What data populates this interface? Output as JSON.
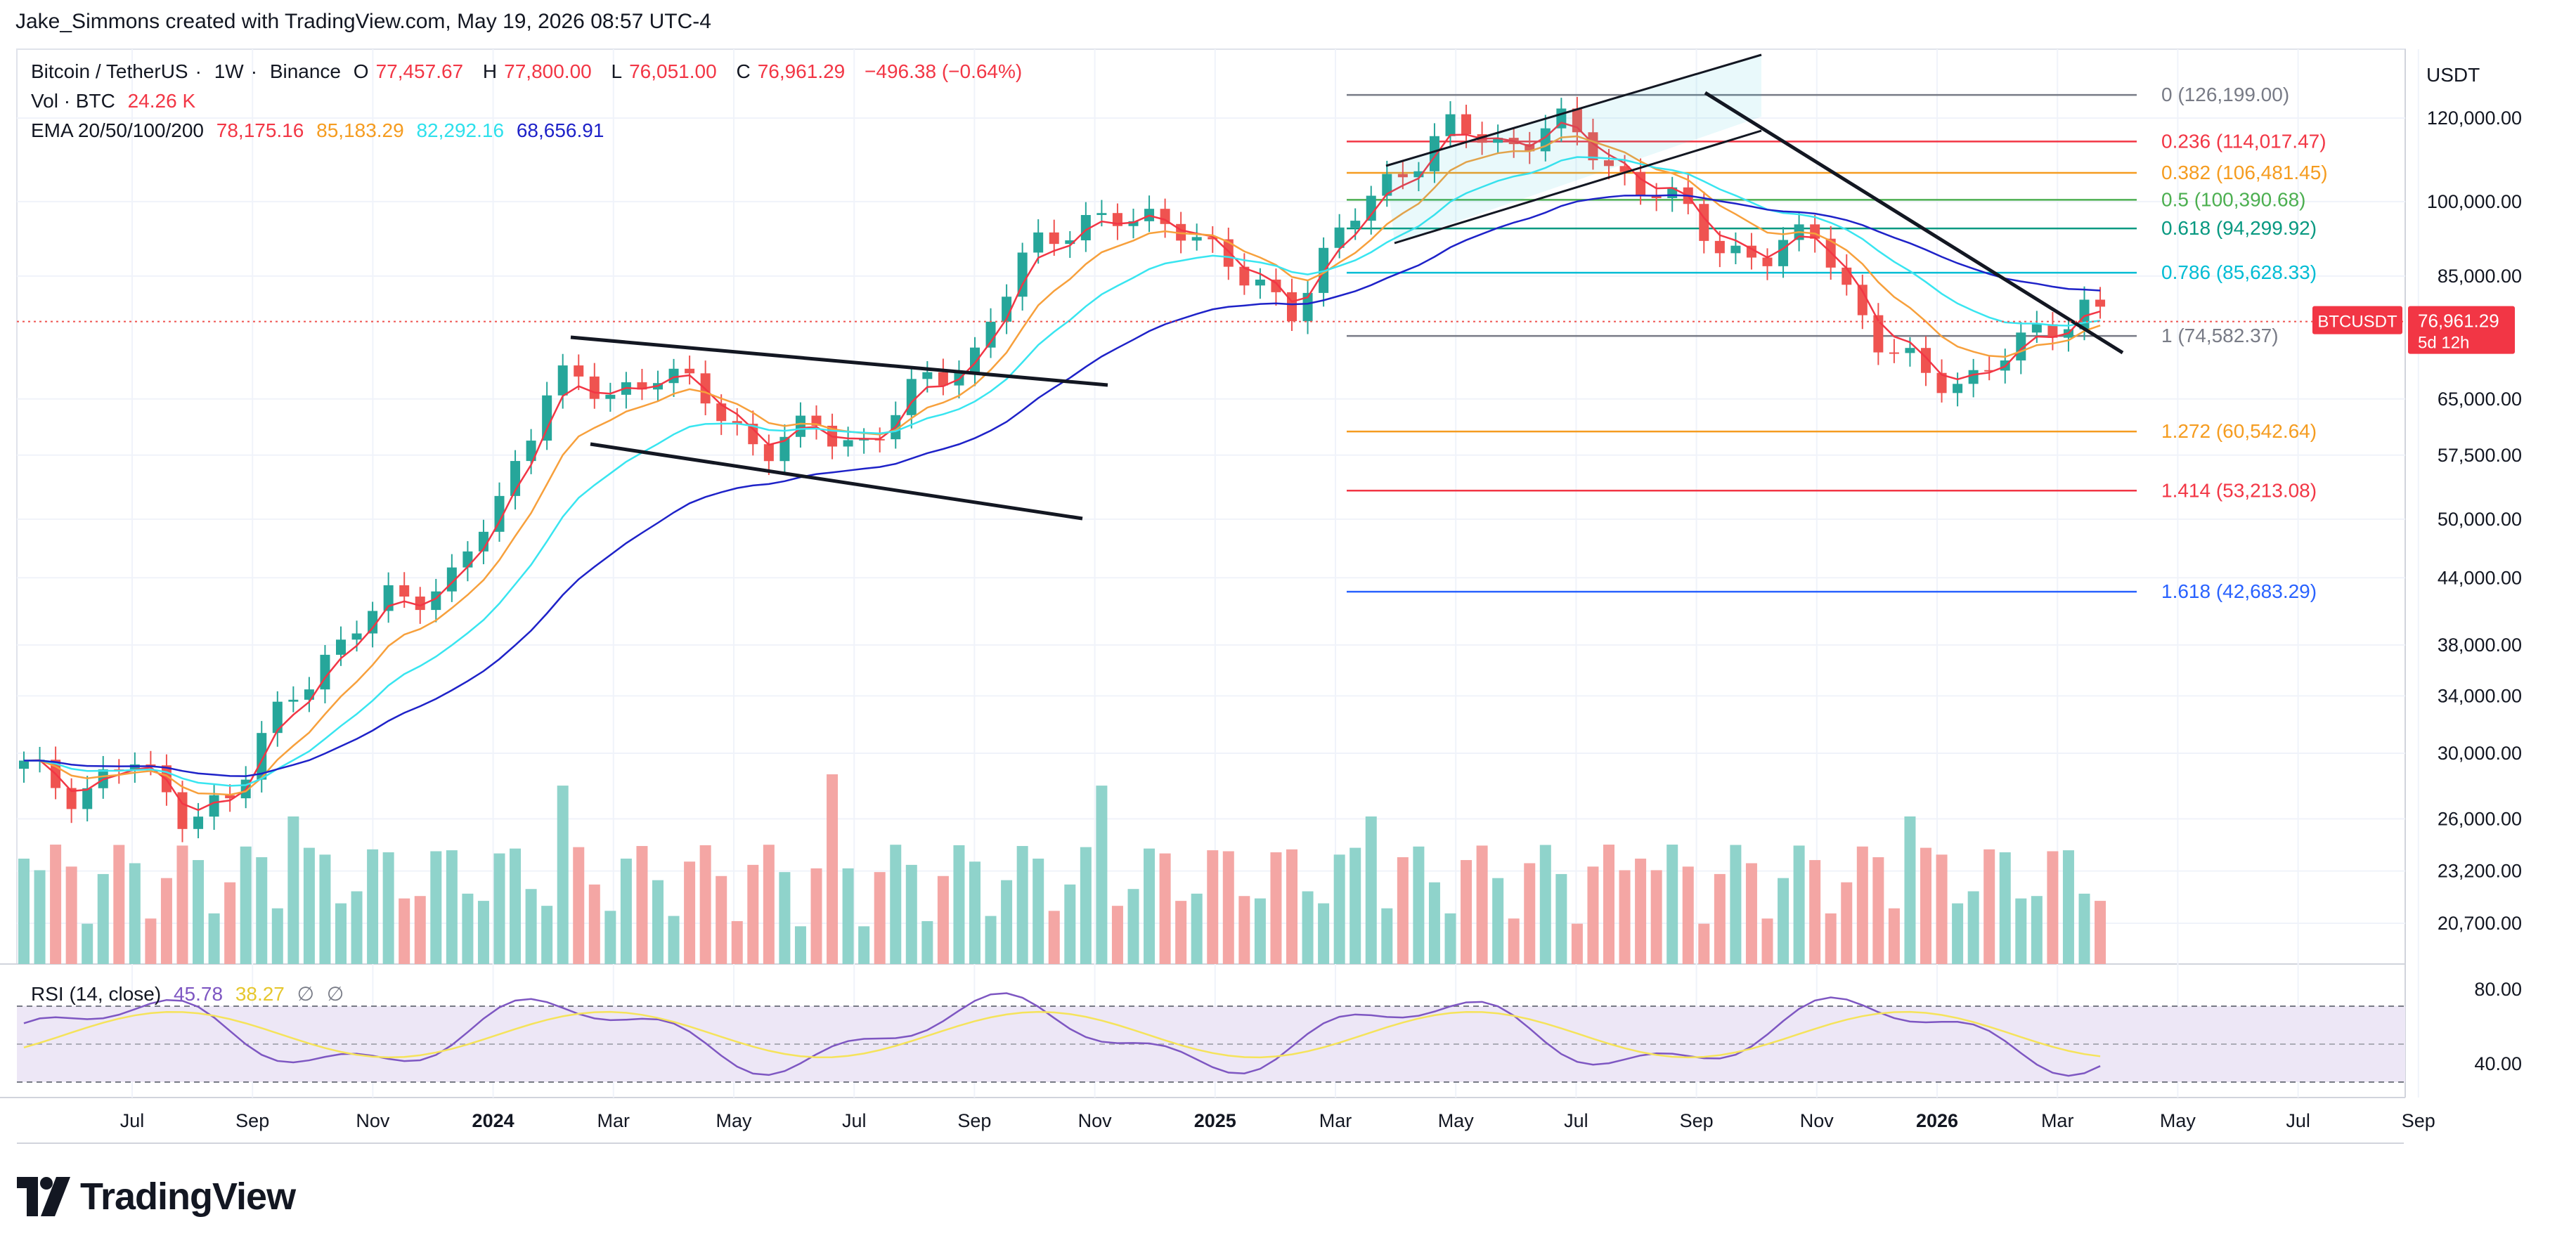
{
  "header": {
    "attribution": "Jake_Simmons created with TradingView.com, May 19, 2026 08:57 UTC-4"
  },
  "symbol": {
    "name": "Bitcoin / TetherUS",
    "interval": "1W",
    "exchange": "Binance",
    "o_label": "O",
    "open": "77,457.67",
    "h_label": "H",
    "high": "77,800.00",
    "l_label": "L",
    "low": "76,051.00",
    "c_label": "C",
    "close": "76,961.29",
    "change": "−496.38 (−0.64%)"
  },
  "volume": {
    "label": "Vol · BTC",
    "value": "24.26 K"
  },
  "ema": {
    "label": "EMA 20/50/100/200",
    "values": [
      "78,175.16",
      "85,183.29",
      "82,292.16",
      "68,656.91"
    ],
    "colors": [
      "#f23645",
      "#f7a03c",
      "#39e5f0",
      "#1e22c8"
    ]
  },
  "rsi": {
    "label": "RSI (14, close)",
    "value": "45.78",
    "ma_value": "38.27",
    "sym1": "∅",
    "sym2": "∅"
  },
  "price_axis": {
    "currency": "USDT",
    "ticks": [
      "120,000.00",
      "100,000.00",
      "85,000.00",
      "65,000.00",
      "57,500.00",
      "50,000.00",
      "44,000.00",
      "38,000.00",
      "34,000.00",
      "30,000.00",
      "26,000.00",
      "23,200.00",
      "20,700.00"
    ],
    "tick_values": [
      120000,
      100000,
      85000,
      65000,
      57500,
      50000,
      44000,
      38000,
      34000,
      30000,
      26000,
      23200,
      20700
    ],
    "rsi_ticks": [
      "80.00",
      "40.00"
    ]
  },
  "last_price": {
    "symbol": "BTCUSDT",
    "price": "76,961.29",
    "countdown": "5d 12h"
  },
  "time_axis": [
    "Jul",
    "Sep",
    "Nov",
    "2024",
    "Mar",
    "May",
    "Jul",
    "Sep",
    "Nov",
    "2025",
    "Mar",
    "May",
    "Jul",
    "Sep",
    "Nov",
    "2026",
    "Mar",
    "May",
    "Jul",
    "Sep"
  ],
  "fib_levels": [
    {
      "label": "0 (126,199.00)",
      "value": 126199,
      "color": "#787b86"
    },
    {
      "label": "0.236 (114,017.47)",
      "value": 114017.47,
      "color": "#f23645"
    },
    {
      "label": "0.382 (106,481.45)",
      "value": 106481.45,
      "color": "#f59c20"
    },
    {
      "label": "0.5 (100,390.68)",
      "value": 100390.68,
      "color": "#4caf50"
    },
    {
      "label": "0.618 (94,299.92)",
      "value": 94299.92,
      "color": "#089981"
    },
    {
      "label": "0.786 (85,628.33)",
      "value": 85628.33,
      "color": "#00bcd4"
    },
    {
      "label": "1 (74,582.37)",
      "value": 74582.37,
      "color": "#787b86"
    },
    {
      "label": "1.272 (60,542.64)",
      "value": 60542.64,
      "color": "#f59c20"
    },
    {
      "label": "1.414 (53,213.08)",
      "value": 53213.08,
      "color": "#f23645"
    },
    {
      "label": "1.618 (42,683.29)",
      "value": 42683.29,
      "color": "#2962ff"
    }
  ],
  "colors": {
    "up": "#26a69a",
    "down": "#ef5350",
    "vol_up": "#8fd3cb",
    "vol_down": "#f4a6a4",
    "rsi": "#7e57c2",
    "rsi_ma": "#f5e35b",
    "rsi_band": "#ede7f6"
  },
  "branding": {
    "logo_text": "TradingView"
  }
}
